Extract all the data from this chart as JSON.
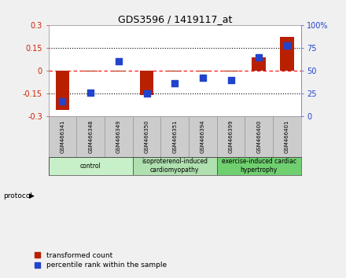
{
  "title": "GDS3596 / 1419117_at",
  "samples": [
    "GSM466341",
    "GSM466348",
    "GSM466349",
    "GSM466350",
    "GSM466351",
    "GSM466394",
    "GSM466399",
    "GSM466400",
    "GSM466401"
  ],
  "transformed_count": [
    -0.255,
    -0.005,
    -0.005,
    -0.16,
    -0.005,
    -0.005,
    -0.005,
    0.09,
    0.22
  ],
  "percentile_rank": [
    17,
    26,
    60,
    25,
    36,
    42,
    40,
    65,
    78
  ],
  "ylim_left": [
    -0.3,
    0.3
  ],
  "ylim_right": [
    0,
    100
  ],
  "yticks_left": [
    -0.3,
    -0.15,
    0,
    0.15,
    0.3
  ],
  "yticks_right": [
    0,
    25,
    50,
    75,
    100
  ],
  "ytick_labels_left": [
    "-0.3",
    "-0.15",
    "0",
    "0.15",
    "0.3"
  ],
  "ytick_labels_right": [
    "0",
    "25",
    "50",
    "75",
    "100%"
  ],
  "hlines_dotted": [
    -0.15,
    0.15
  ],
  "hline_dashed": 0,
  "group_x": [
    [
      0,
      2,
      "control",
      "#c8f0c8"
    ],
    [
      3,
      5,
      "isoproterenol-induced\ncardiomyopathy",
      "#b0e0b0"
    ],
    [
      6,
      8,
      "exercise-induced cardiac\nhypertrophy",
      "#70d070"
    ]
  ],
  "bar_color": "#b82000",
  "dot_color": "#2244cc",
  "bar_width": 0.5,
  "dot_size": 30,
  "bg_color": "#f0f0f0",
  "plot_bg": "#ffffff",
  "legend_bar_label": "transformed count",
  "legend_dot_label": "percentile rank within the sample",
  "sample_cell_color": "#cccccc"
}
